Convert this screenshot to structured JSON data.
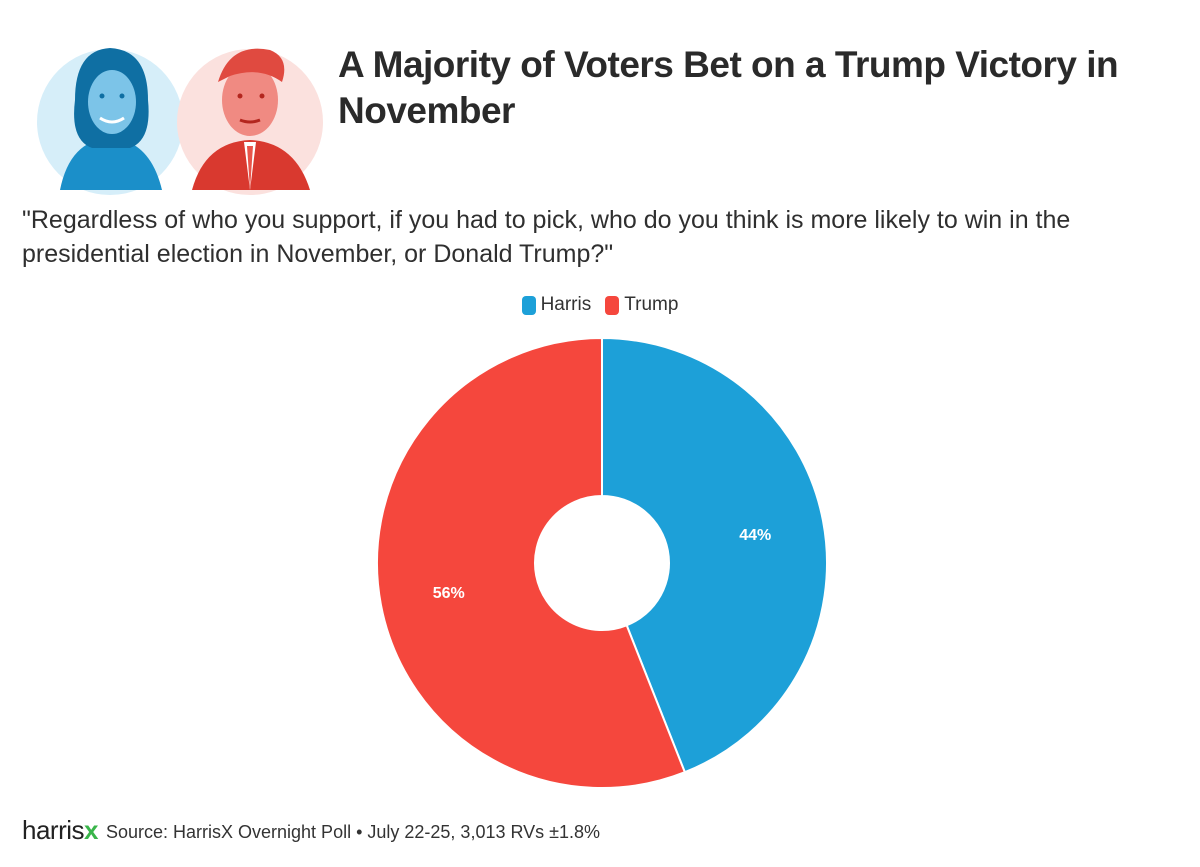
{
  "header": {
    "title": "A Majority of Voters Bet on a Trump Victory in November",
    "question": "\"Regardless of who you support, if you had to pick, who do you think is more likely to win in the presidential election in November, or Donald Trump?\""
  },
  "colors": {
    "harris": "#1da0d8",
    "trump": "#f5473d",
    "logo_x": "#39b54a"
  },
  "chart_data": {
    "type": "pie",
    "donut": true,
    "legend_position": "top-center",
    "series": [
      {
        "name": "Harris",
        "value": 44,
        "label": "44%",
        "color": "#1da0d8"
      },
      {
        "name": "Trump",
        "value": 56,
        "label": "56%",
        "color": "#f5473d"
      }
    ]
  },
  "footer": {
    "logo_text": "harris",
    "logo_accent": "x",
    "source": "Source: HarrisX Overnight Poll • July 22-25, 3,013 RVs ±1.8%"
  }
}
